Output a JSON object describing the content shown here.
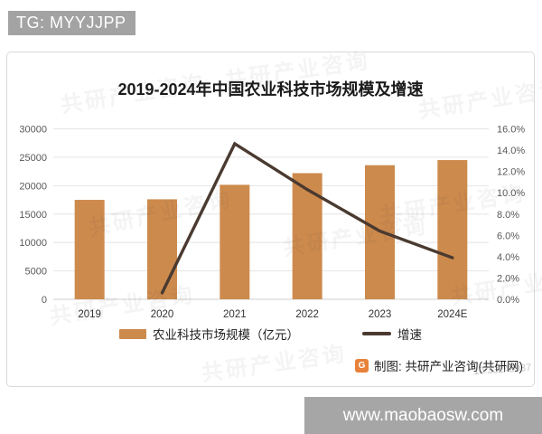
{
  "header": {
    "tg_label": "TG: MYYJJPP"
  },
  "footer": {
    "url": "www.maobaosw.com"
  },
  "panel": {
    "attribution": "制图: 共研产业咨询(共研网)"
  },
  "watermark": {
    "text": "共研产业咨询",
    "code": "10:33243937"
  },
  "colors": {
    "bar": "#cd8a4d",
    "line": "#4a3a30",
    "header_bg": "#a3a3a3",
    "footer_bg": "#a6a6a6",
    "logo": "#e8813a",
    "grid": "#e4e4e4",
    "baseline": "#cfcfcf",
    "axis_text": "#595959"
  },
  "chart_data": {
    "type": "bar+line",
    "title": "2019-2024年中国农业科技市场规模及增速",
    "categories": [
      "2019",
      "2020",
      "2021",
      "2022",
      "2023",
      "2024E"
    ],
    "series": [
      {
        "name": "农业科技市场规模（亿元）",
        "type": "bar",
        "axis": "left",
        "values": [
          17500,
          17600,
          20150,
          22200,
          23600,
          24500
        ]
      },
      {
        "name": "增速",
        "type": "line",
        "axis": "right",
        "values": [
          null,
          0.6,
          14.6,
          10.3,
          6.4,
          3.9
        ],
        "unit": "%"
      }
    ],
    "left_axis": {
      "min": 0,
      "max": 30000,
      "step": 5000,
      "ticks": [
        "0",
        "5000",
        "10000",
        "15000",
        "20000",
        "25000",
        "30000"
      ]
    },
    "right_axis": {
      "min": 0,
      "max": 16,
      "step": 2,
      "ticks": [
        "0.0%",
        "2.0%",
        "4.0%",
        "6.0%",
        "8.0%",
        "10.0%",
        "12.0%",
        "14.0%",
        "16.0%"
      ]
    },
    "grid": true,
    "legend_position": "bottom"
  }
}
